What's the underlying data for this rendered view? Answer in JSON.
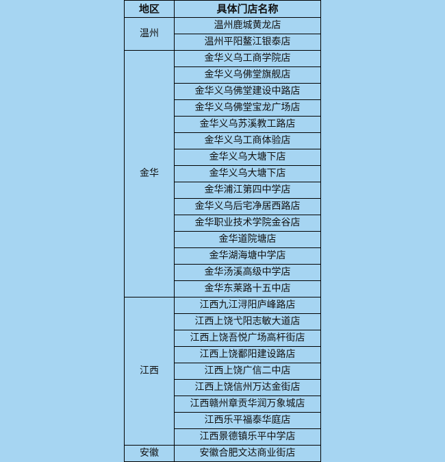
{
  "table": {
    "header": [
      "地区",
      "具体门店名称"
    ],
    "groups": [
      {
        "region": "温州",
        "stores": [
          "温州鹿城黄龙店",
          "温州平阳鳌江银泰店"
        ]
      },
      {
        "region": "金华",
        "stores": [
          "金华义乌工商学院店",
          "金华义乌佛堂旗舰店",
          "金华义乌佛堂建设中路店",
          "金华义乌佛堂宝龙广场店",
          "金华义乌苏溪教工路店",
          "金华义乌工商体验店",
          "金华义乌大塘下店",
          "金华义乌大塘下店",
          "金华浦江第四中学店",
          "金华义乌后宅净居西路店",
          "金华职业技术学院金谷店",
          "金华道院塘店",
          "金华湖海塘中学店",
          "金华汤溪高级中学店",
          "金华东莱路十五中店"
        ]
      },
      {
        "region": "江西",
        "stores": [
          "江西九江浔阳庐峰路店",
          "江西上饶弋阳志敏大道店",
          "江西上饶吾悦广场高杆街店",
          "江西上饶鄱阳建设路店",
          "江西上饶广信二中店",
          "江西上饶信州万达金街店",
          "江西赣州章贡华润万象城店",
          "江西乐平福泰华庭店",
          "江西景德镇乐平中学店"
        ]
      },
      {
        "region": "安徽",
        "stores": [
          "安徽合肥文达商业街店"
        ]
      }
    ]
  }
}
